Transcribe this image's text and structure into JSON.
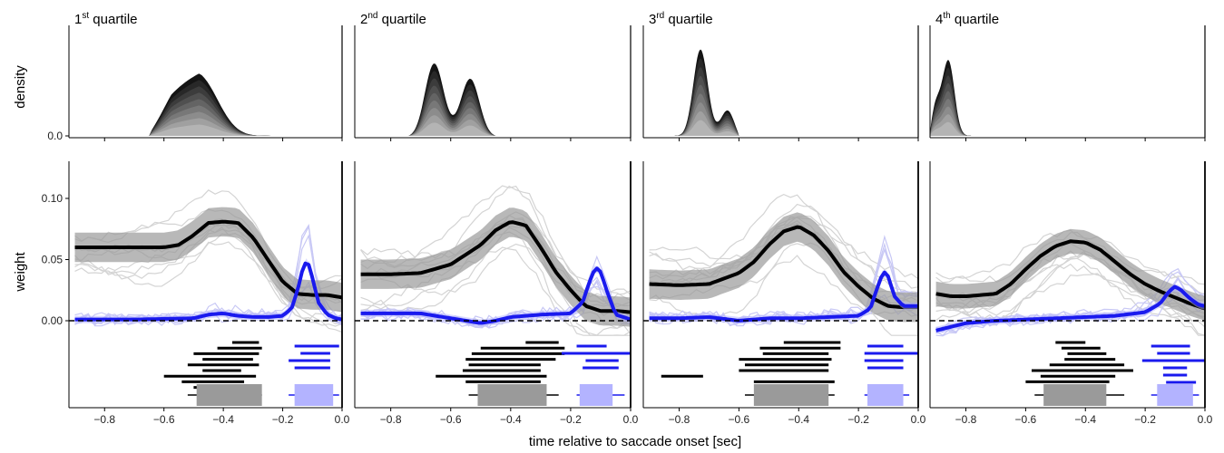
{
  "figure": {
    "xlabel": "time relative to saccade onset [sec]",
    "density_ylabel": "density",
    "weight_ylabel": "weight"
  },
  "colors": {
    "black_series": "#000000",
    "blue_series": "#1a1aee",
    "gray_band": "#9a9a9a",
    "blue_band": "#b3b3ff",
    "individual_lines": "#d4d4d4",
    "individual_blue_lines": "#c8c8f5"
  },
  "chart_data": [
    {
      "type": "line",
      "panel": "1st quartile",
      "title_prefix": "1",
      "title_sup": "st",
      "title_suffix": " quartile",
      "xlim": [
        -0.92,
        0.0
      ],
      "x_ticks": [
        -0.8,
        -0.6,
        -0.4,
        -0.2,
        0.0
      ],
      "x_tick_labels": [
        "−0.8",
        "−0.6",
        "−0.4",
        "−0.2",
        "0.0"
      ],
      "density": {
        "ytick_label": "0.0",
        "range": [
          -0.65,
          -0.09
        ],
        "peaks": [
          [
            -0.58,
            0.75
          ],
          [
            -0.48,
            0.78
          ]
        ],
        "peak_height": 0.8
      },
      "weight_ylim": [
        -0.005,
        0.125
      ],
      "weight_y_ticks": [
        0.0,
        0.05,
        0.1
      ],
      "weight_y_tick_labels": [
        "0.00",
        "0.05",
        "0.10"
      ],
      "series": [
        {
          "name": "black",
          "x": [
            -0.9,
            -0.8,
            -0.7,
            -0.6,
            -0.55,
            -0.5,
            -0.45,
            -0.4,
            -0.35,
            -0.3,
            -0.25,
            -0.2,
            -0.15,
            -0.1,
            -0.05,
            0.0
          ],
          "values": [
            0.06,
            0.06,
            0.06,
            0.06,
            0.062,
            0.07,
            0.08,
            0.081,
            0.08,
            0.068,
            0.05,
            0.032,
            0.022,
            0.021,
            0.021,
            0.019
          ],
          "band": 0.012
        },
        {
          "name": "blue",
          "x": [
            -0.9,
            -0.7,
            -0.5,
            -0.45,
            -0.4,
            -0.35,
            -0.3,
            -0.25,
            -0.2,
            -0.17,
            -0.15,
            -0.13,
            -0.12,
            -0.11,
            -0.1,
            -0.08,
            -0.05,
            -0.02,
            0.0
          ],
          "values": [
            0.001,
            0.001,
            0.002,
            0.005,
            0.006,
            0.004,
            0.003,
            0.003,
            0.004,
            0.01,
            0.025,
            0.045,
            0.048,
            0.045,
            0.035,
            0.015,
            0.005,
            0.002,
            0.001
          ],
          "band": 0.003
        }
      ],
      "intervals_black": [
        [
          -0.37,
          -0.28
        ],
        [
          -0.42,
          -0.27
        ],
        [
          -0.5,
          -0.28
        ],
        [
          -0.47,
          -0.3
        ],
        [
          -0.52,
          -0.28
        ],
        [
          -0.47,
          -0.34
        ],
        [
          -0.6,
          -0.29
        ],
        [
          -0.54,
          -0.33
        ],
        [
          -0.5,
          -0.3
        ]
      ],
      "intervals_blue": [
        [
          -0.16,
          -0.01
        ],
        [
          -0.14,
          -0.04
        ],
        [
          -0.18,
          -0.04
        ],
        [
          -0.16,
          -0.04
        ]
      ],
      "box_black": {
        "ci": [
          -0.52,
          -0.27
        ],
        "box": [
          -0.49,
          -0.27
        ]
      },
      "box_blue": {
        "ci": [
          -0.18,
          -0.01
        ],
        "box": [
          -0.16,
          -0.03
        ]
      }
    },
    {
      "type": "line",
      "panel": "2nd quartile",
      "title_prefix": "2",
      "title_sup": "nd",
      "title_suffix": " quartile",
      "xlim": [
        -0.92,
        0.0
      ],
      "x_ticks": [
        -0.8,
        -0.6,
        -0.4,
        -0.2,
        0.0
      ],
      "x_tick_labels": [
        "−0.8",
        "−0.6",
        "−0.4",
        "−0.2",
        "0.0"
      ],
      "density": {
        "range": [
          -0.74,
          -0.45
        ],
        "peaks": [
          [
            -0.66,
            0.95
          ],
          [
            -0.53,
            0.75
          ]
        ],
        "peak_height": 1.0
      },
      "weight_ylim": [
        -0.005,
        0.125
      ],
      "series": [
        {
          "name": "black",
          "x": [
            -0.9,
            -0.8,
            -0.7,
            -0.6,
            -0.5,
            -0.45,
            -0.4,
            -0.35,
            -0.3,
            -0.25,
            -0.2,
            -0.15,
            -0.1,
            -0.05,
            0.0
          ],
          "values": [
            0.038,
            0.038,
            0.039,
            0.046,
            0.062,
            0.074,
            0.081,
            0.078,
            0.06,
            0.04,
            0.025,
            0.012,
            0.008,
            0.008,
            0.007
          ],
          "band": 0.012
        },
        {
          "name": "blue",
          "x": [
            -0.9,
            -0.8,
            -0.7,
            -0.6,
            -0.55,
            -0.5,
            -0.45,
            -0.4,
            -0.35,
            -0.3,
            -0.2,
            -0.16,
            -0.14,
            -0.12,
            -0.11,
            -0.1,
            -0.08,
            -0.05,
            0.0
          ],
          "values": [
            0.006,
            0.006,
            0.006,
            0.002,
            0.0,
            -0.002,
            0.0,
            0.003,
            0.004,
            0.005,
            0.006,
            0.015,
            0.03,
            0.042,
            0.043,
            0.04,
            0.025,
            0.005,
            0.001
          ],
          "band": 0.003
        }
      ],
      "intervals_black": [
        [
          -0.35,
          -0.24
        ],
        [
          -0.5,
          -0.22
        ],
        [
          -0.53,
          -0.22
        ],
        [
          -0.55,
          -0.25
        ],
        [
          -0.54,
          -0.3
        ],
        [
          -0.56,
          -0.3
        ],
        [
          -0.65,
          -0.28
        ],
        [
          -0.55,
          -0.3
        ]
      ],
      "intervals_blue": [
        [
          -0.18,
          -0.08
        ],
        [
          -0.23,
          0.0
        ],
        [
          -0.15,
          -0.04
        ],
        [
          -0.16,
          -0.04
        ]
      ],
      "box_black": {
        "ci": [
          -0.54,
          -0.24
        ],
        "box": [
          -0.51,
          -0.28
        ]
      },
      "box_blue": {
        "ci": [
          -0.18,
          -0.02
        ],
        "box": [
          -0.17,
          -0.06
        ]
      }
    },
    {
      "type": "line",
      "panel": "3rd quartile",
      "title_prefix": "3",
      "title_sup": "rd",
      "title_suffix": " quartile",
      "xlim": [
        -0.92,
        0.0
      ],
      "x_ticks": [
        -0.8,
        -0.6,
        -0.4,
        -0.2,
        0.0
      ],
      "x_tick_labels": [
        "−0.8",
        "−0.6",
        "−0.4",
        "−0.2",
        "0.0"
      ],
      "density": {
        "range": [
          -0.82,
          -0.6
        ],
        "peaks": [
          [
            -0.73,
            1.0
          ],
          [
            -0.63,
            0.45
          ]
        ],
        "peak_height": 1.0
      },
      "weight_ylim": [
        -0.005,
        0.125
      ],
      "series": [
        {
          "name": "black",
          "x": [
            -0.9,
            -0.8,
            -0.7,
            -0.6,
            -0.55,
            -0.5,
            -0.45,
            -0.4,
            -0.35,
            -0.3,
            -0.25,
            -0.2,
            -0.15,
            -0.1,
            -0.05,
            0.0
          ],
          "values": [
            0.03,
            0.029,
            0.03,
            0.039,
            0.048,
            0.062,
            0.073,
            0.077,
            0.07,
            0.057,
            0.04,
            0.028,
            0.018,
            0.012,
            0.011,
            0.011
          ],
          "band": 0.012
        },
        {
          "name": "blue",
          "x": [
            -0.9,
            -0.8,
            -0.7,
            -0.6,
            -0.5,
            -0.4,
            -0.3,
            -0.2,
            -0.16,
            -0.14,
            -0.12,
            -0.11,
            -0.1,
            -0.08,
            -0.05,
            -0.02,
            0.0
          ],
          "values": [
            0.002,
            0.002,
            0.003,
            0.0,
            0.002,
            0.002,
            0.003,
            0.004,
            0.01,
            0.025,
            0.038,
            0.04,
            0.036,
            0.02,
            0.012,
            0.012,
            0.012
          ],
          "band": 0.003
        }
      ],
      "intervals_black": [
        [
          -0.45,
          -0.26
        ],
        [
          -0.53,
          -0.26
        ],
        [
          -0.52,
          -0.3
        ],
        [
          -0.6,
          -0.29
        ],
        [
          -0.58,
          -0.3
        ],
        [
          -0.6,
          -0.3
        ],
        [
          -0.86,
          -0.72
        ],
        [
          -0.55,
          -0.28
        ]
      ],
      "intervals_blue": [
        [
          -0.17,
          -0.05
        ],
        [
          -0.18,
          0.0
        ],
        [
          -0.18,
          -0.05
        ],
        [
          -0.17,
          -0.05
        ]
      ],
      "box_black": {
        "ci": [
          -0.58,
          -0.28
        ],
        "box": [
          -0.55,
          -0.3
        ]
      },
      "box_blue": {
        "ci": [
          -0.18,
          -0.03
        ],
        "box": [
          -0.17,
          -0.05
        ]
      }
    },
    {
      "type": "line",
      "panel": "4th quartile",
      "title_prefix": "4",
      "title_sup": "th",
      "title_suffix": " quartile",
      "xlim": [
        -0.92,
        0.0
      ],
      "x_ticks": [
        -0.8,
        -0.6,
        -0.4,
        -0.2,
        0.0
      ],
      "x_tick_labels": [
        "−0.8",
        "−0.6",
        "−0.4",
        "−0.2",
        "0.0"
      ],
      "density": {
        "range": [
          -0.92,
          -0.74
        ],
        "peaks": [
          [
            -0.91,
            0.75
          ],
          [
            -0.86,
            0.9
          ]
        ],
        "peak_height": 1.0
      },
      "weight_ylim": [
        -0.005,
        0.125
      ],
      "series": [
        {
          "name": "black",
          "x": [
            -0.9,
            -0.85,
            -0.8,
            -0.75,
            -0.7,
            -0.65,
            -0.6,
            -0.55,
            -0.5,
            -0.45,
            -0.4,
            -0.35,
            -0.3,
            -0.25,
            -0.2,
            -0.15,
            -0.1,
            -0.05,
            0.0
          ],
          "values": [
            0.022,
            0.02,
            0.02,
            0.021,
            0.022,
            0.03,
            0.042,
            0.053,
            0.061,
            0.065,
            0.064,
            0.058,
            0.048,
            0.038,
            0.03,
            0.024,
            0.019,
            0.014,
            0.01
          ],
          "band": 0.01
        },
        {
          "name": "blue",
          "x": [
            -0.9,
            -0.8,
            -0.7,
            -0.6,
            -0.5,
            -0.4,
            -0.3,
            -0.2,
            -0.15,
            -0.12,
            -0.1,
            -0.08,
            -0.05,
            -0.02,
            0.0
          ],
          "values": [
            -0.008,
            -0.002,
            0.0,
            0.001,
            0.002,
            0.003,
            0.004,
            0.007,
            0.014,
            0.024,
            0.028,
            0.025,
            0.018,
            0.013,
            0.012
          ],
          "band": 0.003
        }
      ],
      "intervals_black": [
        [
          -0.5,
          -0.4
        ],
        [
          -0.48,
          -0.35
        ],
        [
          -0.46,
          -0.33
        ],
        [
          -0.47,
          -0.3
        ],
        [
          -0.52,
          -0.27
        ],
        [
          -0.58,
          -0.24
        ],
        [
          -0.55,
          -0.3
        ],
        [
          -0.6,
          -0.32
        ]
      ],
      "intervals_blue": [
        [
          -0.18,
          -0.05
        ],
        [
          -0.16,
          -0.05
        ],
        [
          -0.21,
          0.0
        ],
        [
          -0.14,
          -0.06
        ],
        [
          -0.14,
          -0.06
        ],
        [
          -0.13,
          -0.03
        ]
      ],
      "box_black": {
        "ci": [
          -0.57,
          -0.27
        ],
        "box": [
          -0.54,
          -0.33
        ]
      },
      "box_blue": {
        "ci": [
          -0.18,
          -0.02
        ],
        "box": [
          -0.16,
          -0.04
        ]
      }
    }
  ]
}
